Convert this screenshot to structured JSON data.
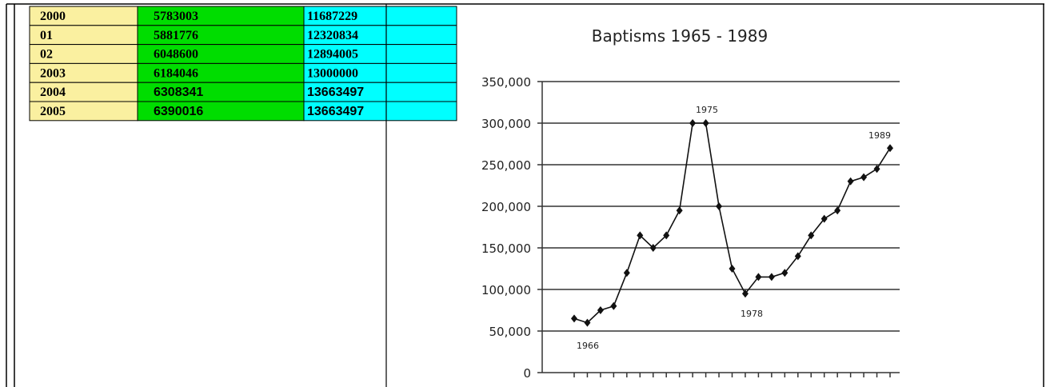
{
  "table": {
    "rows": [
      [
        "2000",
        "5783003",
        "11687229"
      ],
      [
        "01",
        "5881776",
        "12320834"
      ],
      [
        "02",
        "6048600",
        "12894005"
      ],
      [
        "2003",
        "6184046",
        "13000000"
      ],
      [
        "2004",
        "6308341",
        "13663497"
      ],
      [
        "2005",
        "6390016",
        "13663497"
      ]
    ]
  },
  "chart": {
    "type": "line",
    "title": "Baptisms 1965 - 1989",
    "categories": [
      null,
      null,
      null,
      null,
      null,
      null,
      null,
      null,
      null,
      null,
      null,
      null,
      null,
      null,
      null,
      null,
      null,
      null,
      null,
      null,
      null,
      null,
      null,
      null,
      null
    ],
    "values": [
      65000,
      60000,
      75000,
      80000,
      120000,
      165000,
      150000,
      165000,
      195000,
      300000,
      300000,
      200000,
      125000,
      95000,
      115000,
      115000,
      120000,
      140000,
      165000,
      185000,
      195000,
      230000,
      235000,
      245000,
      270000
    ],
    "color": "#111111",
    "ylim": [
      0,
      350000
    ],
    "yticks": [
      {
        "value": 0,
        "label": "0"
      },
      {
        "value": 50000,
        "label": "50,000"
      },
      {
        "value": 100000,
        "label": "100,000"
      },
      {
        "value": 150000,
        "label": "150,000"
      },
      {
        "value": 200000,
        "label": "200,000"
      },
      {
        "value": 250000,
        "label": "250,000"
      },
      {
        "value": 300000,
        "label": "300,000"
      },
      {
        "value": 350000,
        "label": "350,000"
      }
    ],
    "grid": true,
    "annotations": [
      "1966",
      "1975",
      "1978",
      "1989"
    ]
  }
}
